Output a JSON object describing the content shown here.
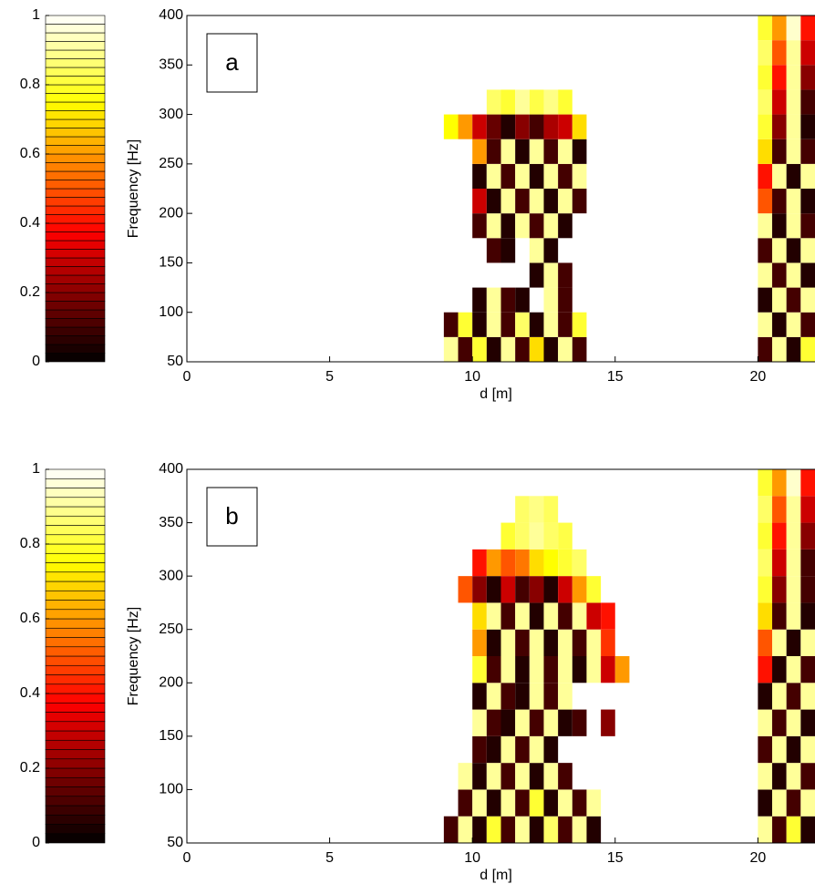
{
  "chart_data": [
    {
      "type": "heatmap",
      "label": "a",
      "xlabel": "d [m]",
      "ylabel": "Frequency [Hz]",
      "xlim": [
        0,
        22
      ],
      "ylim": [
        50,
        400
      ],
      "xticks": [
        0,
        5,
        10,
        15,
        20
      ],
      "yticks": [
        50,
        100,
        150,
        200,
        250,
        300,
        350,
        400
      ],
      "xbins": [
        9,
        9.5,
        10,
        10.5,
        11,
        11.5,
        12,
        12.5,
        13,
        13.5,
        14,
        14.5,
        15,
        15.5,
        16,
        16.5,
        17,
        17.5,
        18,
        18.5,
        19,
        19.5,
        20,
        20.5,
        21,
        21.5,
        22
      ],
      "ybins": [
        50,
        75,
        100,
        125,
        150,
        175,
        200,
        225,
        250,
        275,
        300,
        325,
        350,
        375,
        400
      ],
      "colormap": "hot",
      "colorbar": {
        "lim": [
          0,
          1
        ],
        "ticks": [
          0,
          0.2,
          0.4,
          0.6,
          0.8,
          1
        ]
      },
      "z": [
        [
          0.9,
          0.1,
          0.8,
          0.05,
          0.9,
          0.1,
          0.7,
          0.05,
          0.9,
          0.1,
          null,
          null,
          null,
          null,
          null,
          null,
          null,
          null,
          null,
          null,
          null,
          null,
          0.1,
          0.9,
          0.05,
          0.8
        ],
        [
          0.1,
          0.8,
          0.05,
          0.9,
          0.1,
          0.85,
          0.05,
          0.9,
          0.1,
          0.8,
          null,
          null,
          null,
          null,
          null,
          null,
          null,
          null,
          null,
          null,
          null,
          null,
          0.9,
          0.05,
          0.9,
          0.1
        ],
        [
          null,
          null,
          0.05,
          0.9,
          0.1,
          0.05,
          null,
          0.9,
          0.1,
          null,
          null,
          null,
          null,
          null,
          null,
          null,
          null,
          null,
          null,
          null,
          null,
          null,
          0.05,
          0.9,
          0.1,
          0.9
        ],
        [
          null,
          null,
          null,
          null,
          null,
          null,
          0.05,
          0.9,
          0.1,
          null,
          null,
          null,
          null,
          null,
          null,
          null,
          null,
          null,
          null,
          null,
          null,
          null,
          0.9,
          0.1,
          0.9,
          0.05
        ],
        [
          null,
          null,
          null,
          0.1,
          0.05,
          null,
          0.9,
          0.05,
          null,
          null,
          null,
          null,
          null,
          null,
          null,
          null,
          null,
          null,
          null,
          null,
          null,
          null,
          0.1,
          0.9,
          0.05,
          0.9
        ],
        [
          null,
          null,
          0.1,
          0.9,
          0.05,
          0.9,
          0.1,
          0.9,
          0.05,
          null,
          null,
          null,
          null,
          null,
          null,
          null,
          null,
          null,
          null,
          null,
          null,
          null,
          0.9,
          0.05,
          0.9,
          0.1
        ],
        [
          null,
          null,
          0.3,
          0.05,
          0.9,
          0.1,
          0.9,
          0.05,
          0.9,
          0.1,
          null,
          null,
          null,
          null,
          null,
          null,
          null,
          null,
          null,
          null,
          null,
          null,
          0.5,
          0.1,
          0.9,
          0.05
        ],
        [
          null,
          null,
          0.05,
          0.9,
          0.1,
          0.9,
          0.05,
          0.9,
          0.1,
          0.9,
          null,
          null,
          null,
          null,
          null,
          null,
          null,
          null,
          null,
          null,
          null,
          null,
          0.4,
          0.9,
          0.05,
          0.9
        ],
        [
          null,
          null,
          0.6,
          0.1,
          0.9,
          0.05,
          0.9,
          0.1,
          0.9,
          0.05,
          null,
          null,
          null,
          null,
          null,
          null,
          null,
          null,
          null,
          null,
          null,
          null,
          0.7,
          0.1,
          0.9,
          0.1
        ],
        [
          0.75,
          0.6,
          0.3,
          0.15,
          0.05,
          0.2,
          0.1,
          0.25,
          0.3,
          0.7,
          null,
          null,
          null,
          null,
          null,
          null,
          null,
          null,
          null,
          null,
          null,
          null,
          0.8,
          0.2,
          0.9,
          0.05
        ],
        [
          null,
          null,
          null,
          0.85,
          0.8,
          0.9,
          0.82,
          0.88,
          0.8,
          null,
          null,
          null,
          null,
          null,
          null,
          null,
          null,
          null,
          null,
          null,
          null,
          null,
          0.85,
          0.3,
          0.9,
          0.1
        ],
        [
          null,
          null,
          null,
          null,
          null,
          null,
          null,
          null,
          null,
          null,
          null,
          null,
          null,
          null,
          null,
          null,
          null,
          null,
          null,
          null,
          null,
          null,
          0.8,
          0.4,
          0.9,
          0.2
        ],
        [
          null,
          null,
          null,
          null,
          null,
          null,
          null,
          null,
          null,
          null,
          null,
          null,
          null,
          null,
          null,
          null,
          null,
          null,
          null,
          null,
          null,
          null,
          0.85,
          0.5,
          0.9,
          0.3
        ],
        [
          null,
          null,
          null,
          null,
          null,
          null,
          null,
          null,
          null,
          null,
          null,
          null,
          null,
          null,
          null,
          null,
          null,
          null,
          null,
          null,
          null,
          null,
          0.8,
          0.6,
          0.95,
          0.4
        ]
      ]
    },
    {
      "type": "heatmap",
      "label": "b",
      "xlabel": "d [m]",
      "ylabel": "Frequency [Hz]",
      "xlim": [
        0,
        22
      ],
      "ylim": [
        50,
        400
      ],
      "xticks": [
        0,
        5,
        10,
        15,
        20
      ],
      "yticks": [
        50,
        100,
        150,
        200,
        250,
        300,
        350,
        400
      ],
      "xbins": [
        9,
        9.5,
        10,
        10.5,
        11,
        11.5,
        12,
        12.5,
        13,
        13.5,
        14,
        14.5,
        15,
        15.5,
        16,
        16.5,
        17,
        17.5,
        18,
        18.5,
        19,
        19.5,
        20,
        20.5,
        21,
        21.5,
        22
      ],
      "ybins": [
        50,
        75,
        100,
        125,
        150,
        175,
        200,
        225,
        250,
        275,
        300,
        325,
        350,
        375,
        400
      ],
      "colormap": "hot",
      "colorbar": {
        "lim": [
          0,
          1
        ],
        "ticks": [
          0,
          0.2,
          0.4,
          0.6,
          0.8,
          1
        ]
      },
      "z": [
        [
          0.1,
          0.9,
          0.05,
          0.8,
          0.1,
          0.9,
          0.05,
          0.85,
          0.1,
          0.9,
          0.05,
          null,
          null,
          null,
          null,
          null,
          null,
          null,
          null,
          null,
          null,
          null,
          0.9,
          0.1,
          0.8,
          0.05
        ],
        [
          null,
          0.1,
          0.9,
          0.05,
          0.9,
          0.1,
          0.8,
          0.05,
          0.9,
          0.1,
          0.9,
          null,
          null,
          null,
          null,
          null,
          null,
          null,
          null,
          null,
          null,
          null,
          0.05,
          0.9,
          0.1,
          0.9
        ],
        [
          null,
          0.9,
          0.05,
          0.9,
          0.1,
          0.9,
          0.05,
          0.9,
          0.1,
          null,
          null,
          null,
          null,
          null,
          null,
          null,
          null,
          null,
          null,
          null,
          null,
          null,
          0.9,
          0.05,
          0.9,
          0.1
        ],
        [
          null,
          null,
          0.1,
          0.05,
          0.9,
          0.1,
          0.9,
          0.05,
          null,
          null,
          null,
          null,
          null,
          null,
          null,
          null,
          null,
          null,
          null,
          null,
          null,
          null,
          0.1,
          0.9,
          0.05,
          0.9
        ],
        [
          null,
          null,
          0.9,
          0.1,
          0.05,
          0.9,
          0.1,
          0.9,
          0.05,
          0.1,
          null,
          0.2,
          null,
          null,
          null,
          null,
          null,
          null,
          null,
          null,
          null,
          null,
          0.9,
          0.1,
          0.9,
          0.05
        ],
        [
          null,
          null,
          0.05,
          0.9,
          0.1,
          0.05,
          0.9,
          0.1,
          0.9,
          null,
          null,
          null,
          null,
          null,
          null,
          null,
          null,
          null,
          null,
          null,
          null,
          null,
          0.05,
          0.9,
          0.1,
          0.9
        ],
        [
          null,
          null,
          0.8,
          0.1,
          0.9,
          0.05,
          0.9,
          0.1,
          0.9,
          0.05,
          0.9,
          0.3,
          0.6,
          null,
          null,
          null,
          null,
          null,
          null,
          null,
          null,
          null,
          0.4,
          0.05,
          0.9,
          0.1
        ],
        [
          null,
          null,
          0.6,
          0.05,
          0.9,
          0.1,
          0.9,
          0.05,
          0.9,
          0.1,
          0.9,
          0.45,
          null,
          null,
          null,
          null,
          null,
          null,
          null,
          null,
          null,
          null,
          0.5,
          0.9,
          0.05,
          0.9
        ],
        [
          null,
          null,
          0.7,
          0.9,
          0.1,
          0.9,
          0.05,
          0.9,
          0.1,
          0.9,
          0.3,
          0.4,
          null,
          null,
          null,
          null,
          null,
          null,
          null,
          null,
          null,
          null,
          0.7,
          0.1,
          0.9,
          0.05
        ],
        [
          null,
          0.5,
          0.2,
          0.05,
          0.3,
          0.1,
          0.2,
          0.05,
          0.3,
          0.6,
          0.8,
          null,
          null,
          null,
          null,
          null,
          null,
          null,
          null,
          null,
          null,
          null,
          0.8,
          0.2,
          0.9,
          0.1
        ],
        [
          null,
          null,
          0.4,
          0.6,
          0.5,
          0.55,
          0.7,
          0.75,
          0.8,
          0.85,
          null,
          null,
          null,
          null,
          null,
          null,
          null,
          null,
          null,
          null,
          null,
          null,
          0.85,
          0.3,
          0.9,
          0.1
        ],
        [
          null,
          null,
          null,
          null,
          0.8,
          0.85,
          0.9,
          0.85,
          0.82,
          null,
          null,
          null,
          null,
          null,
          null,
          null,
          null,
          null,
          null,
          null,
          null,
          null,
          0.8,
          0.4,
          0.9,
          0.2
        ],
        [
          null,
          null,
          null,
          null,
          null,
          0.85,
          0.88,
          0.84,
          null,
          null,
          null,
          null,
          null,
          null,
          null,
          null,
          null,
          null,
          null,
          null,
          null,
          null,
          0.85,
          0.5,
          0.9,
          0.3
        ],
        [
          null,
          null,
          null,
          null,
          null,
          null,
          null,
          null,
          null,
          null,
          null,
          null,
          null,
          null,
          null,
          null,
          null,
          null,
          null,
          null,
          null,
          null,
          0.8,
          0.6,
          0.95,
          0.4
        ]
      ]
    }
  ]
}
